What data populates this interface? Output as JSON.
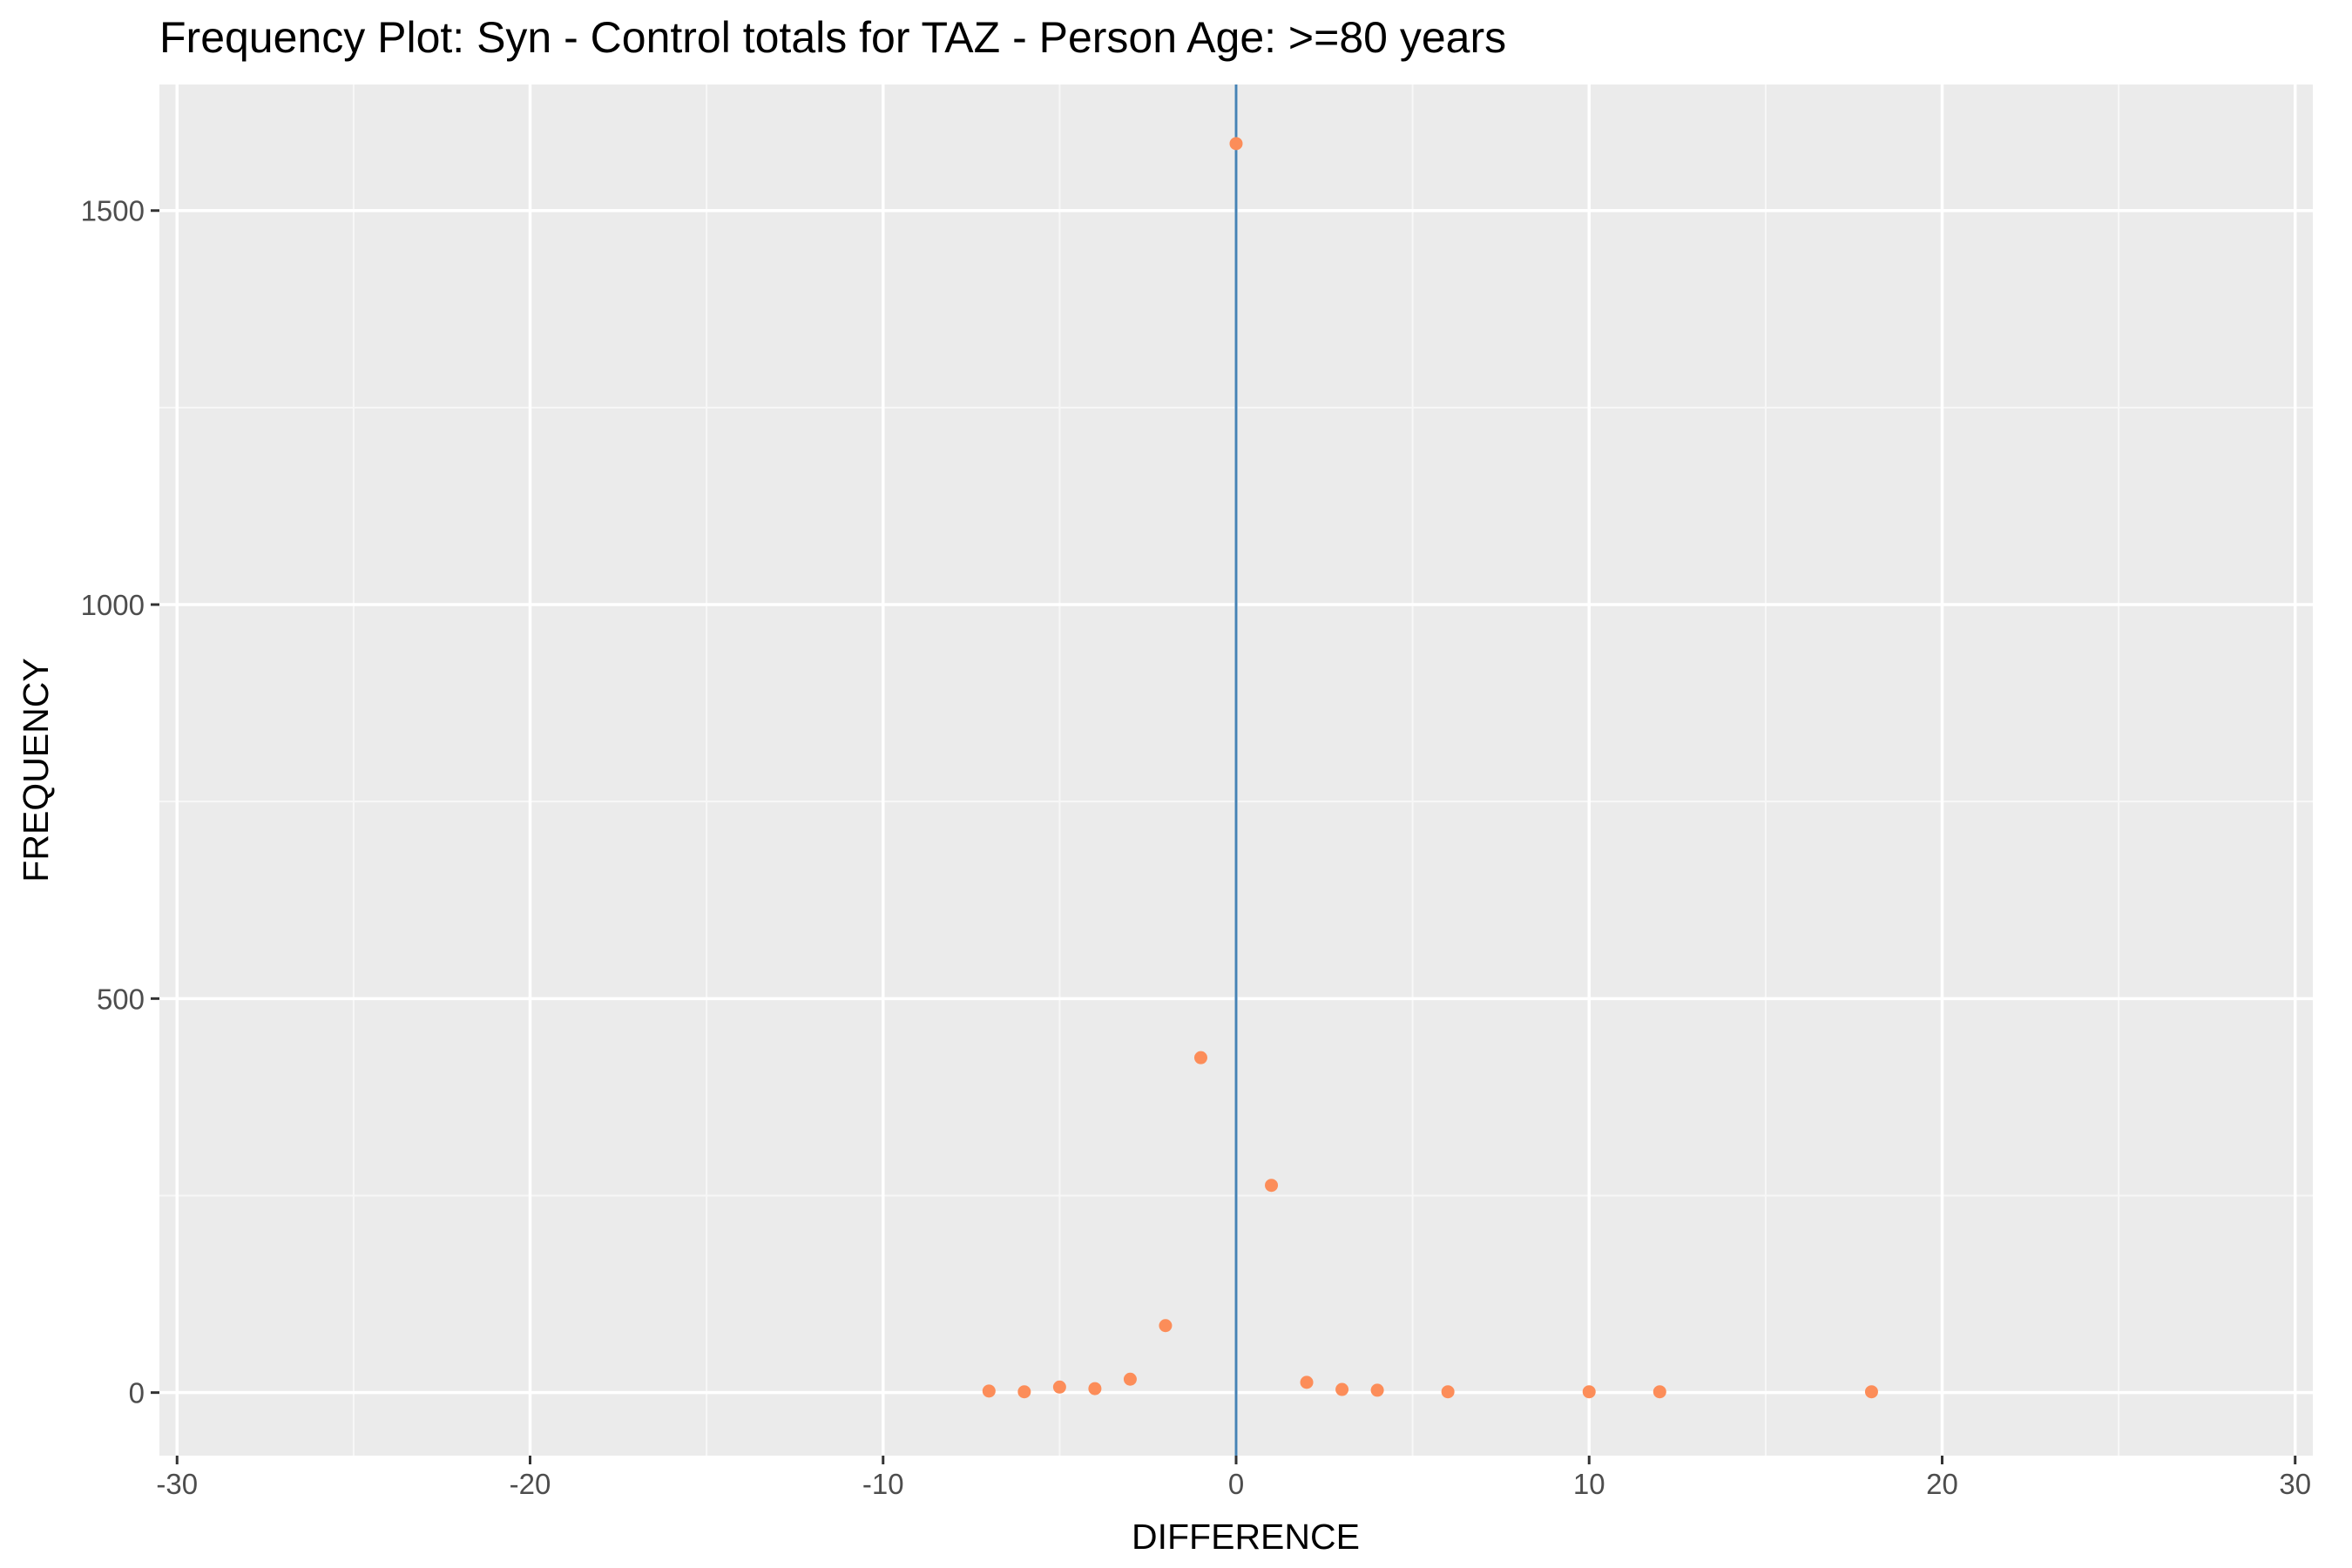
{
  "chart_data": {
    "type": "scatter",
    "title": "Frequency Plot: Syn - Control totals for TAZ - Person Age: >=80 years",
    "xlabel": "DIFFERENCE",
    "ylabel": "FREQUENCY",
    "xlim": [
      -30.5,
      30.5
    ],
    "ylim": [
      -80,
      1660
    ],
    "x_ticks": [
      -30,
      -20,
      -10,
      0,
      10,
      20,
      30
    ],
    "x_tick_labels": [
      "-30",
      "-20",
      "-10",
      "0",
      "10",
      "20",
      "30"
    ],
    "x_minor_ticks": [
      -25,
      -15,
      -5,
      5,
      15,
      25
    ],
    "y_ticks": [
      0,
      500,
      1000,
      1500
    ],
    "y_tick_labels": [
      "0",
      "500",
      "1000",
      "1500"
    ],
    "y_minor_ticks": [
      250,
      750,
      1250
    ],
    "grid": true,
    "reference_line": {
      "x": 0,
      "color": "#4682b4"
    },
    "series": [
      {
        "color": "#fc8d59",
        "points": [
          {
            "x": -7,
            "y": 2
          },
          {
            "x": -6,
            "y": 1
          },
          {
            "x": -5,
            "y": 7
          },
          {
            "x": -4,
            "y": 5
          },
          {
            "x": -3,
            "y": 17
          },
          {
            "x": -2,
            "y": 85
          },
          {
            "x": -1,
            "y": 425
          },
          {
            "x": 0,
            "y": 1585
          },
          {
            "x": 1,
            "y": 263
          },
          {
            "x": 2,
            "y": 13
          },
          {
            "x": 3,
            "y": 4
          },
          {
            "x": 4,
            "y": 3
          },
          {
            "x": 6,
            "y": 1
          },
          {
            "x": 10,
            "y": 1
          },
          {
            "x": 12,
            "y": 1
          },
          {
            "x": 18,
            "y": 1
          }
        ]
      }
    ],
    "colors": {
      "panel_background": "#ebebeb",
      "grid_major": "#ffffff",
      "grid_minor": "#f7f7f7",
      "tick_mark": "#333333"
    }
  }
}
